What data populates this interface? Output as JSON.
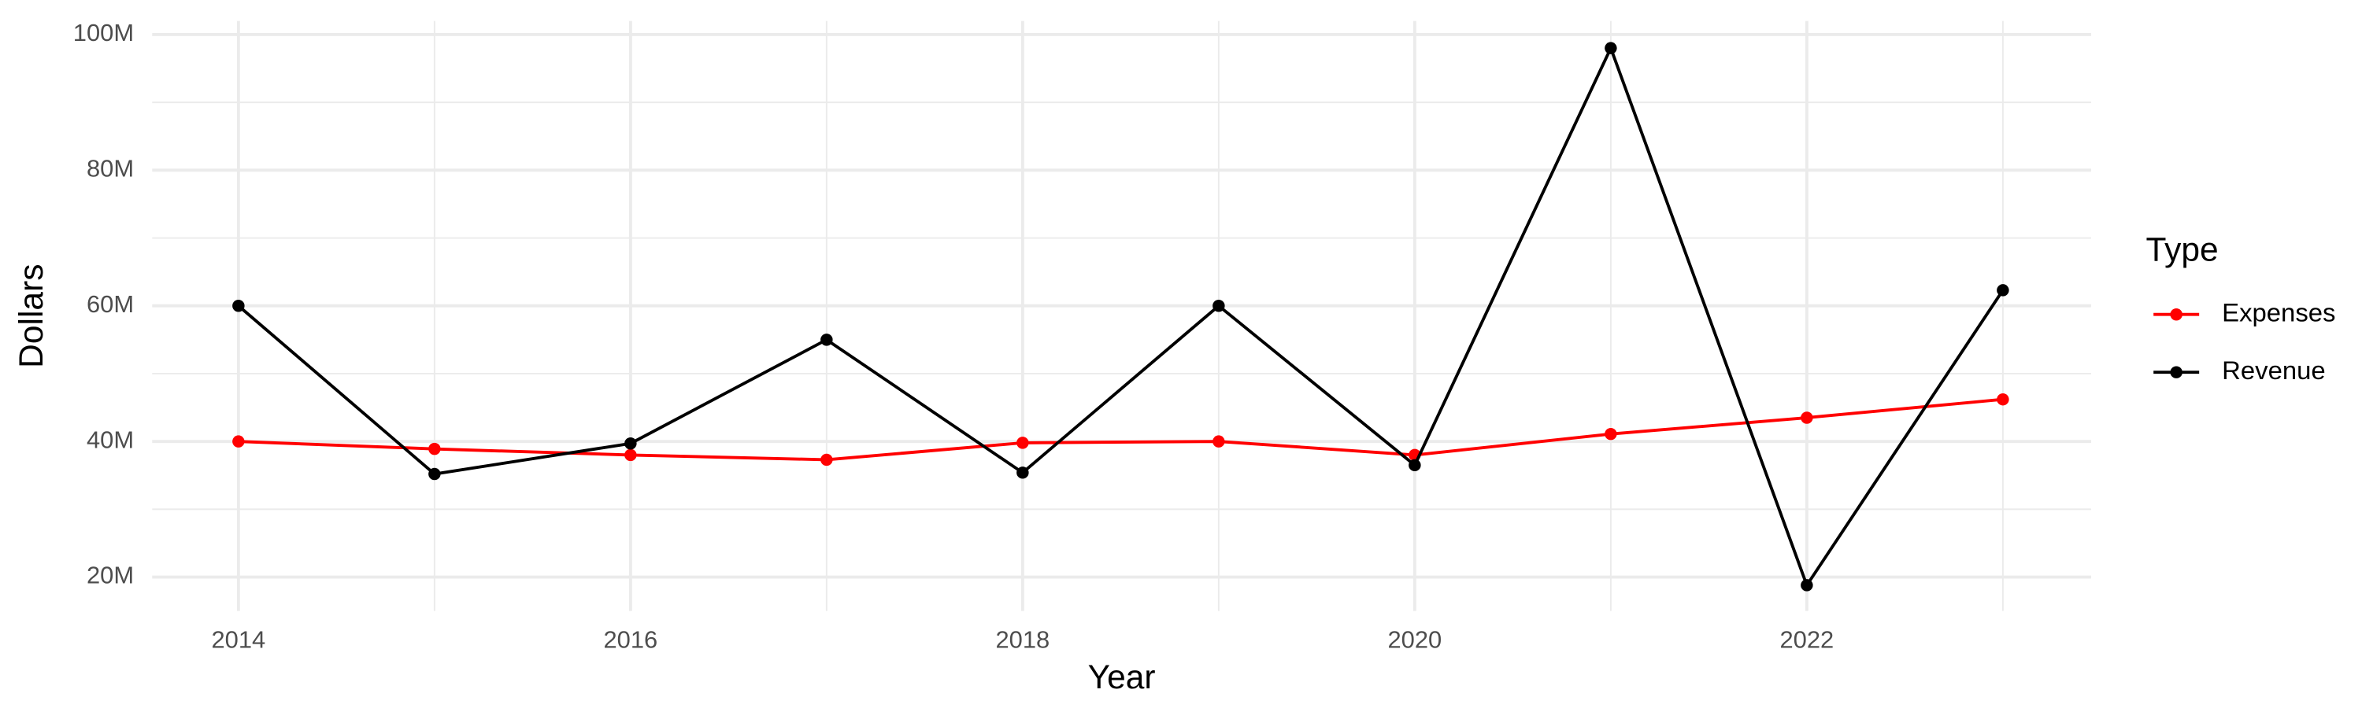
{
  "chart_data": {
    "type": "line",
    "x_label": "Year",
    "y_label": "Dollars",
    "legend_title": "Type",
    "x": [
      2014,
      2015,
      2016,
      2017,
      2018,
      2019,
      2020,
      2021,
      2022,
      2023
    ],
    "series": [
      {
        "name": "Expenses",
        "color": "#ff0000",
        "values": [
          40000000,
          38900000,
          38000000,
          37300000,
          39800000,
          40000000,
          38000000,
          41100000,
          43500000,
          46200000
        ]
      },
      {
        "name": "Revenue",
        "color": "#000000",
        "values": [
          60000000,
          35200000,
          39700000,
          55000000,
          35400000,
          60000000,
          36500000,
          98000000,
          18800000,
          62300000
        ]
      }
    ],
    "xlim": [
      2013.56,
      2023.45
    ],
    "xticks": [
      2014,
      2016,
      2018,
      2020,
      2022
    ],
    "x_minor_ticks": [
      2015,
      2017,
      2019,
      2021,
      2023
    ],
    "ylim": [
      15000000,
      102000000
    ],
    "yticks": [
      {
        "value": 20000000,
        "label": "20M"
      },
      {
        "value": 40000000,
        "label": "40M"
      },
      {
        "value": 60000000,
        "label": "60M"
      },
      {
        "value": 80000000,
        "label": "80M"
      },
      {
        "value": 100000000,
        "label": "100M"
      }
    ],
    "y_minor_ticks": [
      30000000,
      50000000,
      70000000,
      90000000
    ],
    "grid": true,
    "legend": "right"
  }
}
